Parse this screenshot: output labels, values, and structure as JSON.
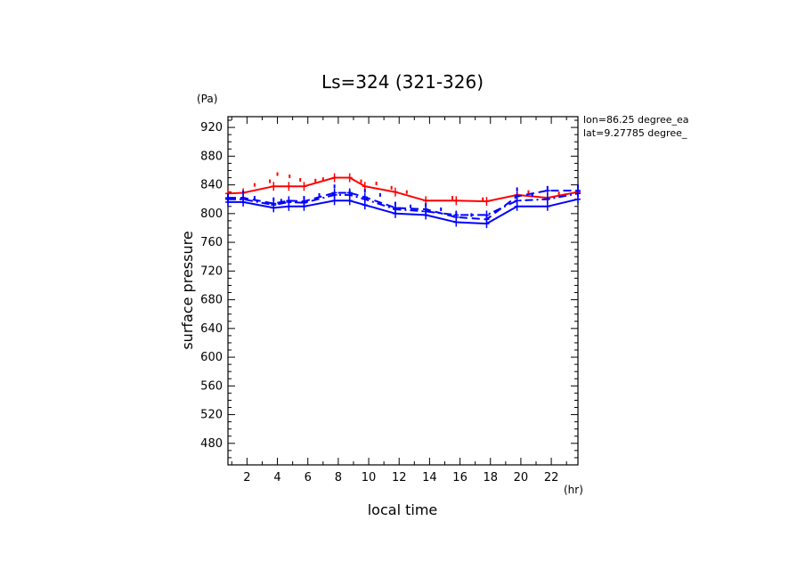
{
  "chart_data": {
    "type": "line",
    "title": "Ls=324 (321-326)",
    "xlabel": "local time",
    "ylabel": "surface pressure",
    "x_unit": "(hr)",
    "y_unit": "(Pa)",
    "annotations": [
      "lon=86.25 degree_ea",
      "lat=9.27785 degree_"
    ],
    "xlim": [
      0.75,
      23.75
    ],
    "ylim": [
      450,
      935
    ],
    "x_ticks": [
      2,
      4,
      6,
      8,
      10,
      12,
      14,
      16,
      18,
      20,
      22
    ],
    "y_ticks": [
      480,
      520,
      560,
      600,
      640,
      680,
      720,
      760,
      800,
      840,
      880,
      920
    ],
    "x_minor_step": 1,
    "y_minor_step": 10,
    "grid": false,
    "x": [
      0.75,
      1.75,
      3.75,
      4.75,
      5.75,
      7.75,
      8.75,
      9.75,
      11.75,
      13.75,
      15.75,
      17.75,
      19.75,
      21.75,
      23.75
    ],
    "series": [
      {
        "color": "#ff0000",
        "style": "solid",
        "values": [
          828,
          829,
          838,
          838,
          838,
          850,
          850,
          838,
          830,
          818,
          818,
          817,
          826,
          822,
          830
        ]
      },
      {
        "color": "#0000ff",
        "style": "dashed",
        "values": [
          822,
          822,
          814,
          818,
          817,
          829,
          829,
          823,
          808,
          806,
          795,
          792,
          824,
          832,
          832
        ]
      },
      {
        "color": "#0000ff",
        "style": "dash-dot",
        "values": [
          820,
          820,
          812,
          816,
          815,
          826,
          826,
          820,
          806,
          803,
          798,
          798,
          818,
          820,
          828
        ]
      },
      {
        "color": "#0000ff",
        "style": "solid",
        "values": [
          816,
          816,
          808,
          810,
          810,
          818,
          818,
          812,
          800,
          798,
          788,
          786,
          810,
          810,
          820
        ]
      }
    ],
    "scatter": [
      {
        "color": "#ff0000",
        "points": [
          [
            2.5,
            840
          ],
          [
            3.5,
            845
          ],
          [
            4.0,
            855
          ],
          [
            4.8,
            852
          ],
          [
            5.5,
            847
          ],
          [
            6.5,
            846
          ],
          [
            7.0,
            848
          ],
          [
            9.5,
            845
          ],
          [
            10.5,
            842
          ],
          [
            11.5,
            836
          ],
          [
            12.5,
            830
          ],
          [
            15.5,
            822
          ],
          [
            17.5,
            820
          ],
          [
            20.5,
            830
          ],
          [
            22.5,
            828
          ]
        ]
      },
      {
        "color": "#0000ff",
        "points": [
          [
            0.75,
            825
          ],
          [
            1.75,
            830
          ],
          [
            2.5,
            822
          ],
          [
            3.75,
            820
          ],
          [
            4.25,
            818
          ],
          [
            5.75,
            822
          ],
          [
            6.75,
            826
          ],
          [
            7.75,
            838
          ],
          [
            8.75,
            830
          ],
          [
            9.75,
            832
          ],
          [
            10.75,
            826
          ],
          [
            11.75,
            814
          ],
          [
            12.75,
            810
          ],
          [
            13.75,
            812
          ],
          [
            14.75,
            806
          ],
          [
            15.75,
            800
          ],
          [
            16.75,
            798
          ],
          [
            17.75,
            796
          ],
          [
            19.75,
            834
          ],
          [
            20.75,
            826
          ],
          [
            21.75,
            836
          ],
          [
            23.75,
            838
          ]
        ]
      }
    ]
  }
}
